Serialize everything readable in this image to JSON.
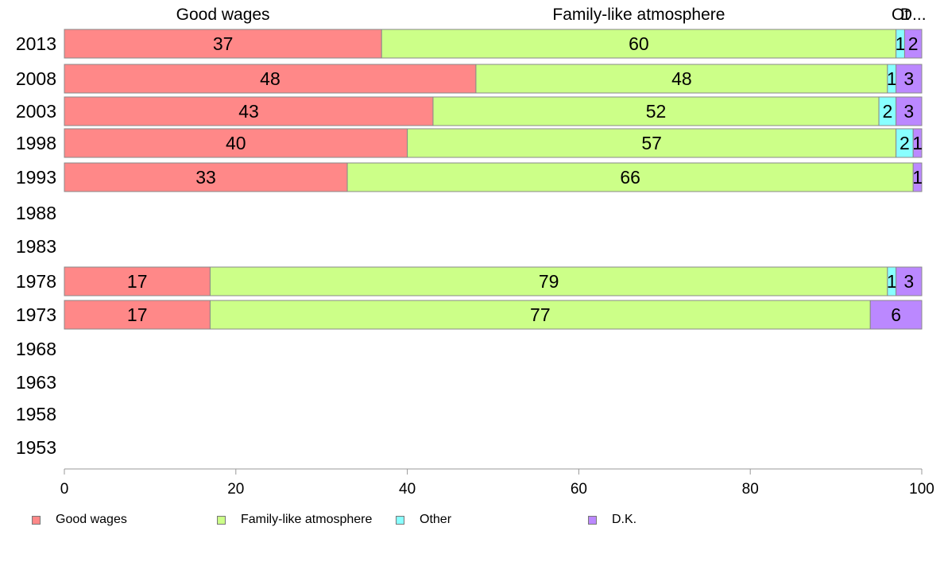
{
  "chart_data": {
    "type": "bar",
    "orientation": "horizontal",
    "stacked": true,
    "category_headers": [
      "Good wages",
      "Family-like atmosphere",
      "Ot",
      "D..."
    ],
    "categories": [
      "2013",
      "2008",
      "2003",
      "1998",
      "1993",
      "1988",
      "1983",
      "1978",
      "1973",
      "1968",
      "1963",
      "1958",
      "1953"
    ],
    "series": [
      {
        "name": "Good wages",
        "color": "#ff8888",
        "values": [
          37,
          48,
          43,
          40,
          33,
          null,
          null,
          17,
          17,
          null,
          null,
          null,
          null
        ]
      },
      {
        "name": "Family-like atmosphere",
        "color": "#ccff88",
        "values": [
          60,
          48,
          52,
          57,
          66,
          null,
          null,
          79,
          77,
          null,
          null,
          null,
          null
        ]
      },
      {
        "name": "Other",
        "color": "#88ffff",
        "values": [
          1,
          1,
          2,
          2,
          0,
          null,
          null,
          1,
          0,
          null,
          null,
          null,
          null
        ]
      },
      {
        "name": "D.K.",
        "color": "#bb88ff",
        "values": [
          2,
          3,
          3,
          1,
          1,
          null,
          null,
          3,
          6,
          null,
          null,
          null,
          null
        ]
      }
    ],
    "xlim": [
      0,
      100
    ],
    "xticks": [
      0,
      20,
      40,
      60,
      80,
      100
    ],
    "legend_position": "bottom",
    "grid": false
  }
}
